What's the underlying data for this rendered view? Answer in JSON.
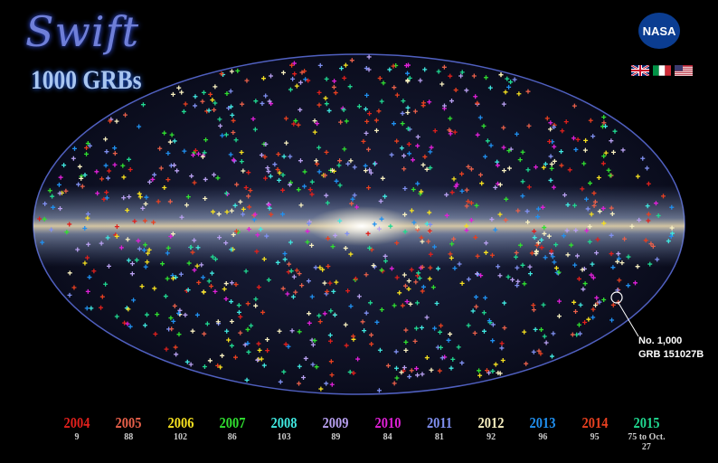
{
  "title": {
    "logo": "Swift",
    "subtitle": "1000 GRBs"
  },
  "nasa_logo": "NASA",
  "flags": [
    "uk-flag",
    "italy-flag",
    "usa-flag"
  ],
  "callout": {
    "line1": "No. 1,000",
    "line2": "GRB 151027B",
    "color": "#20c8a0"
  },
  "legend": [
    {
      "year": "2004",
      "count": "9",
      "color": "#e0201c"
    },
    {
      "year": "2005",
      "count": "88",
      "color": "#e8604a"
    },
    {
      "year": "2006",
      "count": "102",
      "color": "#f5e020"
    },
    {
      "year": "2007",
      "count": "86",
      "color": "#30e030"
    },
    {
      "year": "2008",
      "count": "103",
      "color": "#40e8e0"
    },
    {
      "year": "2009",
      "count": "89",
      "color": "#b8a0f0"
    },
    {
      "year": "2010",
      "count": "84",
      "color": "#e020d8"
    },
    {
      "year": "2011",
      "count": "81",
      "color": "#8090f0"
    },
    {
      "year": "2012",
      "count": "92",
      "color": "#f8f0c0"
    },
    {
      "year": "2013",
      "count": "96",
      "color": "#2090f0"
    },
    {
      "year": "2014",
      "count": "95",
      "color": "#e84020"
    },
    {
      "year": "2015",
      "count": "75 to Oct. 27",
      "color": "#20d890"
    }
  ]
}
